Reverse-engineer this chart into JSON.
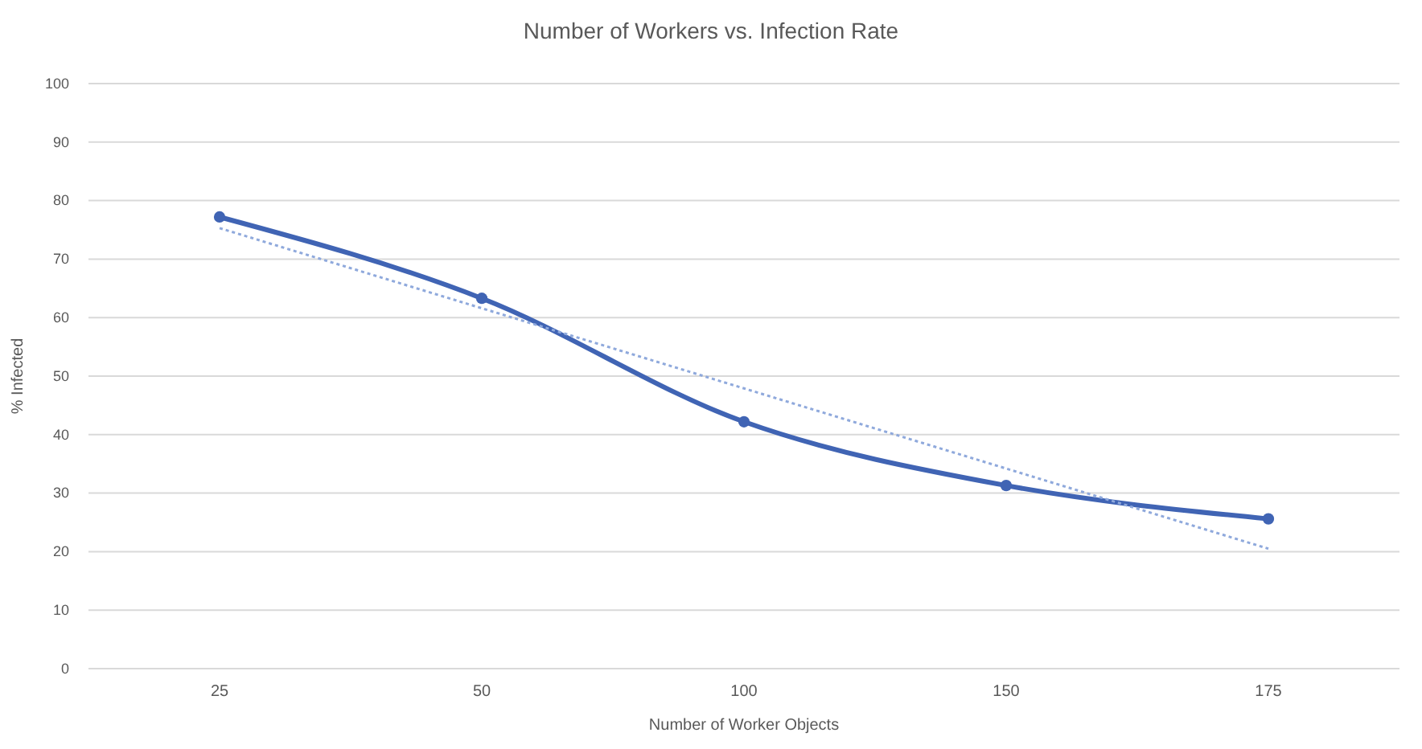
{
  "chart_data": {
    "type": "line",
    "title": "Number of Workers vs. Infection Rate",
    "xlabel": "Number of Worker Objects",
    "ylabel": "% Infected",
    "categories": [
      "25",
      "50",
      "100",
      "150",
      "175"
    ],
    "series": [
      {
        "color": "#4064b4",
        "values": [
          77.2,
          63.3,
          42.2,
          31.3,
          25.6
        ],
        "marker": "circle",
        "line_style": "solid"
      },
      {
        "color": "#8fa9dc",
        "values": [
          75.3,
          61.6,
          47.9,
          34.2,
          20.5
        ],
        "marker": "none",
        "line_style": "dotted"
      }
    ],
    "ylim": [
      0,
      100
    ],
    "yticks": [
      0,
      10,
      20,
      30,
      40,
      50,
      60,
      70,
      80,
      90,
      100
    ],
    "grid": "y"
  }
}
